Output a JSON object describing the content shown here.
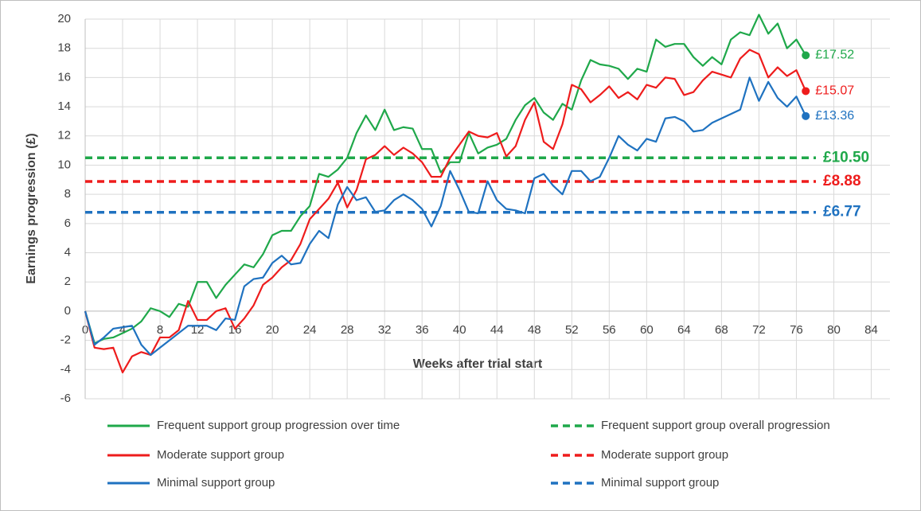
{
  "chart_data": {
    "type": "line",
    "x_label": "Weeks after trial start",
    "y_label": "Earnings progression (£)",
    "x": [
      0,
      1,
      2,
      3,
      4,
      5,
      6,
      7,
      8,
      9,
      10,
      11,
      12,
      13,
      14,
      15,
      16,
      17,
      18,
      19,
      20,
      21,
      22,
      23,
      24,
      25,
      26,
      27,
      28,
      29,
      30,
      31,
      32,
      33,
      34,
      35,
      36,
      37,
      38,
      39,
      40,
      41,
      42,
      43,
      44,
      45,
      46,
      47,
      48,
      49,
      50,
      51,
      52,
      53,
      54,
      55,
      56,
      57,
      58,
      59,
      60,
      61,
      62,
      63,
      64,
      65,
      66,
      67,
      68,
      69,
      70,
      71,
      72,
      73,
      74,
      75,
      76,
      77
    ],
    "series": [
      {
        "name": "Frequent support group progression over time",
        "color": "#1fa84a",
        "end_label": "£17.52",
        "values": [
          0,
          -2.2,
          -1.9,
          -1.8,
          -1.5,
          -1.2,
          -0.7,
          0.2,
          0.0,
          -0.4,
          0.5,
          0.3,
          2.0,
          2.0,
          0.9,
          1.8,
          2.5,
          3.2,
          3.0,
          3.9,
          5.2,
          5.5,
          5.5,
          6.5,
          7.2,
          9.4,
          9.2,
          9.7,
          10.5,
          12.2,
          13.4,
          12.4,
          13.8,
          12.4,
          12.6,
          12.5,
          11.1,
          11.1,
          9.5,
          10.2,
          10.2,
          12.2,
          10.8,
          11.2,
          11.4,
          11.8,
          13.1,
          14.1,
          14.6,
          13.6,
          13.1,
          14.2,
          13.8,
          15.8,
          17.2,
          16.9,
          16.8,
          16.6,
          15.9,
          16.6,
          16.4,
          18.6,
          18.1,
          18.3,
          18.3,
          17.4,
          16.8,
          17.4,
          16.9,
          18.6,
          19.1,
          18.9,
          20.3,
          19.0,
          19.7,
          18.0,
          18.6,
          17.52
        ]
      },
      {
        "name": "Moderate support group",
        "color": "#ee1c1c",
        "end_label": "£15.07",
        "values": [
          0,
          -2.5,
          -2.6,
          -2.5,
          -4.2,
          -3.1,
          -2.8,
          -3.0,
          -1.8,
          -1.8,
          -1.3,
          0.7,
          -0.6,
          -0.6,
          0.0,
          0.2,
          -1.2,
          -0.5,
          0.4,
          1.8,
          2.3,
          3.0,
          3.5,
          4.6,
          6.3,
          7.0,
          7.7,
          8.8,
          7.1,
          8.3,
          10.4,
          10.7,
          11.3,
          10.7,
          11.2,
          10.8,
          10.2,
          9.2,
          9.2,
          10.5,
          11.4,
          12.3,
          12.0,
          11.9,
          12.2,
          10.6,
          11.3,
          13.1,
          14.3,
          11.6,
          11.1,
          12.8,
          15.5,
          15.2,
          14.3,
          14.8,
          15.4,
          14.6,
          15.0,
          14.5,
          15.5,
          15.3,
          16.0,
          15.9,
          14.8,
          15.0,
          15.8,
          16.4,
          16.2,
          16.0,
          17.3,
          17.9,
          17.6,
          16.0,
          16.7,
          16.1,
          16.5,
          15.07
        ]
      },
      {
        "name": "Minimal support group",
        "color": "#1f72c0",
        "end_label": "£13.36",
        "values": [
          0,
          -2.3,
          -1.8,
          -1.2,
          -1.1,
          -1.0,
          -2.3,
          -3.0,
          -2.5,
          -2.0,
          -1.5,
          -1.0,
          -1.0,
          -1.0,
          -1.3,
          -0.5,
          -0.6,
          1.7,
          2.2,
          2.3,
          3.3,
          3.8,
          3.2,
          3.3,
          4.6,
          5.5,
          5.0,
          7.3,
          8.5,
          7.6,
          7.8,
          6.8,
          6.9,
          7.6,
          8.0,
          7.6,
          7.0,
          5.8,
          7.2,
          9.6,
          8.3,
          6.8,
          6.7,
          8.9,
          7.6,
          7.0,
          6.9,
          6.7,
          9.1,
          9.4,
          8.6,
          8.0,
          9.6,
          9.6,
          8.9,
          9.2,
          10.5,
          12.0,
          11.4,
          11.0,
          11.8,
          11.6,
          13.2,
          13.3,
          13.0,
          12.3,
          12.4,
          12.9,
          13.2,
          13.5,
          13.8,
          16.0,
          14.4,
          15.7,
          14.6,
          14.0,
          14.7,
          13.36
        ]
      }
    ],
    "reference_lines": [
      {
        "name": "Frequent support group overall progression",
        "color": "#1fa84a",
        "value": 10.5,
        "label": "£10.50"
      },
      {
        "name": "Moderate support group",
        "color": "#ee1c1c",
        "value": 8.88,
        "label": "£8.88"
      },
      {
        "name": "Minimal support group",
        "color": "#1f72c0",
        "value": 6.77,
        "label": "£6.77"
      }
    ],
    "xlim": [
      0,
      86
    ],
    "xticks": [
      0,
      4,
      8,
      12,
      16,
      20,
      24,
      28,
      32,
      36,
      40,
      44,
      48,
      52,
      56,
      60,
      64,
      68,
      72,
      76,
      80,
      84
    ],
    "ylim": [
      -6,
      20
    ],
    "yticks": [
      -6,
      -4,
      -2,
      0,
      2,
      4,
      6,
      8,
      10,
      12,
      14,
      16,
      18,
      20
    ],
    "grid": true
  }
}
